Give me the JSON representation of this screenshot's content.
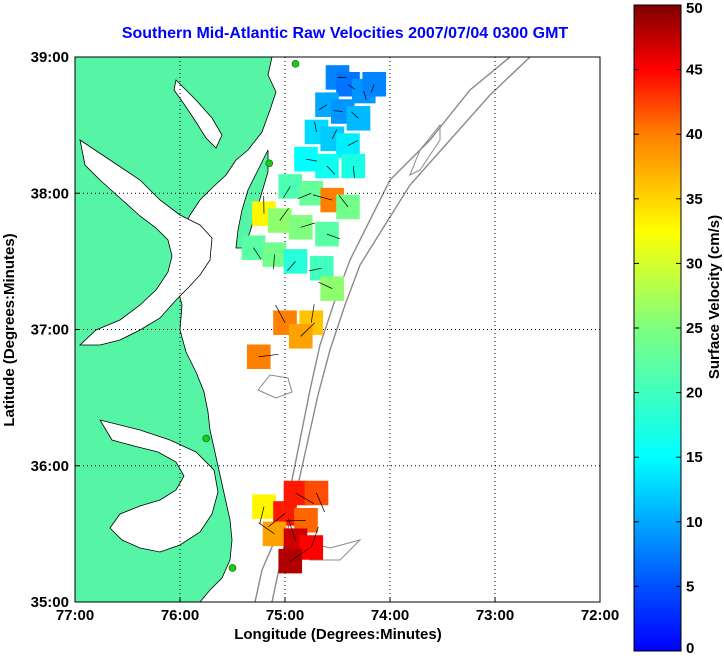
{
  "chart_data": {
    "type": "heatmap",
    "title": "Southern Mid-Atlantic Raw Velocities 2007/07/04 0300 GMT",
    "xlabel": "Longitude (Degrees:Minutes)",
    "ylabel": "Latitude (Degrees:Minutes)",
    "x_ticks": [
      -77,
      -76,
      -75,
      -74,
      -73,
      -72
    ],
    "x_tick_labels": [
      "77:00",
      "76:00",
      "75:00",
      "74:00",
      "73:00",
      "72:00"
    ],
    "y_ticks": [
      35,
      36,
      37,
      38,
      39
    ],
    "y_tick_labels": [
      "35:00",
      "36:00",
      "37:00",
      "38:00",
      "39:00"
    ],
    "xlim": [
      -77,
      -72
    ],
    "ylim": [
      35,
      39
    ],
    "grid": true,
    "colorbar": {
      "label": "Surface Velocity (cm/s)",
      "min": 0,
      "max": 50,
      "ticks": [
        0,
        5,
        10,
        15,
        20,
        25,
        30,
        35,
        40,
        45,
        50
      ]
    },
    "velocity_cells": [
      {
        "lon": -74.5,
        "lat": 38.85,
        "speed": 8
      },
      {
        "lon": -74.4,
        "lat": 38.8,
        "speed": 7
      },
      {
        "lon": -74.25,
        "lat": 38.75,
        "speed": 9
      },
      {
        "lon": -74.15,
        "lat": 38.8,
        "speed": 8
      },
      {
        "lon": -74.6,
        "lat": 38.65,
        "speed": 10
      },
      {
        "lon": -74.45,
        "lat": 38.6,
        "speed": 9
      },
      {
        "lon": -74.3,
        "lat": 38.55,
        "speed": 11
      },
      {
        "lon": -74.7,
        "lat": 38.45,
        "speed": 13
      },
      {
        "lon": -74.55,
        "lat": 38.4,
        "speed": 12
      },
      {
        "lon": -74.4,
        "lat": 38.35,
        "speed": 14
      },
      {
        "lon": -74.8,
        "lat": 38.25,
        "speed": 15
      },
      {
        "lon": -74.6,
        "lat": 38.2,
        "speed": 16
      },
      {
        "lon": -74.35,
        "lat": 38.2,
        "speed": 17
      },
      {
        "lon": -74.95,
        "lat": 38.05,
        "speed": 21
      },
      {
        "lon": -74.75,
        "lat": 38.0,
        "speed": 23
      },
      {
        "lon": -74.55,
        "lat": 37.95,
        "speed": 40
      },
      {
        "lon": -74.4,
        "lat": 37.9,
        "speed": 24
      },
      {
        "lon": -75.2,
        "lat": 37.85,
        "speed": 33
      },
      {
        "lon": -75.05,
        "lat": 37.8,
        "speed": 26
      },
      {
        "lon": -74.85,
        "lat": 37.75,
        "speed": 25
      },
      {
        "lon": -74.6,
        "lat": 37.7,
        "speed": 22
      },
      {
        "lon": -75.3,
        "lat": 37.6,
        "speed": 22
      },
      {
        "lon": -75.1,
        "lat": 37.55,
        "speed": 24
      },
      {
        "lon": -74.9,
        "lat": 37.5,
        "speed": 18
      },
      {
        "lon": -74.65,
        "lat": 37.45,
        "speed": 20
      },
      {
        "lon": -74.55,
        "lat": 37.3,
        "speed": 26
      },
      {
        "lon": -75.0,
        "lat": 37.05,
        "speed": 40
      },
      {
        "lon": -74.75,
        "lat": 37.05,
        "speed": 36
      },
      {
        "lon": -74.85,
        "lat": 36.95,
        "speed": 38
      },
      {
        "lon": -75.25,
        "lat": 36.8,
        "speed": 40
      },
      {
        "lon": -74.9,
        "lat": 35.8,
        "speed": 44
      },
      {
        "lon": -74.7,
        "lat": 35.8,
        "speed": 42
      },
      {
        "lon": -75.2,
        "lat": 35.7,
        "speed": 33
      },
      {
        "lon": -75.0,
        "lat": 35.65,
        "speed": 44
      },
      {
        "lon": -74.8,
        "lat": 35.6,
        "speed": 41
      },
      {
        "lon": -75.1,
        "lat": 35.5,
        "speed": 38
      },
      {
        "lon": -74.9,
        "lat": 35.45,
        "speed": 47
      },
      {
        "lon": -74.75,
        "lat": 35.4,
        "speed": 45
      },
      {
        "lon": -74.95,
        "lat": 35.3,
        "speed": 48
      }
    ],
    "stations": [
      {
        "lon": -74.9,
        "lat": 38.95
      },
      {
        "lon": -75.15,
        "lat": 38.22
      },
      {
        "lon": -75.75,
        "lat": 36.2
      },
      {
        "lon": -75.5,
        "lat": 35.25
      }
    ],
    "colors": {
      "land": "#55f5a5",
      "station": "#1ec81e",
      "bathymetry": "#8a8a8a",
      "title": "#0000ff"
    }
  }
}
